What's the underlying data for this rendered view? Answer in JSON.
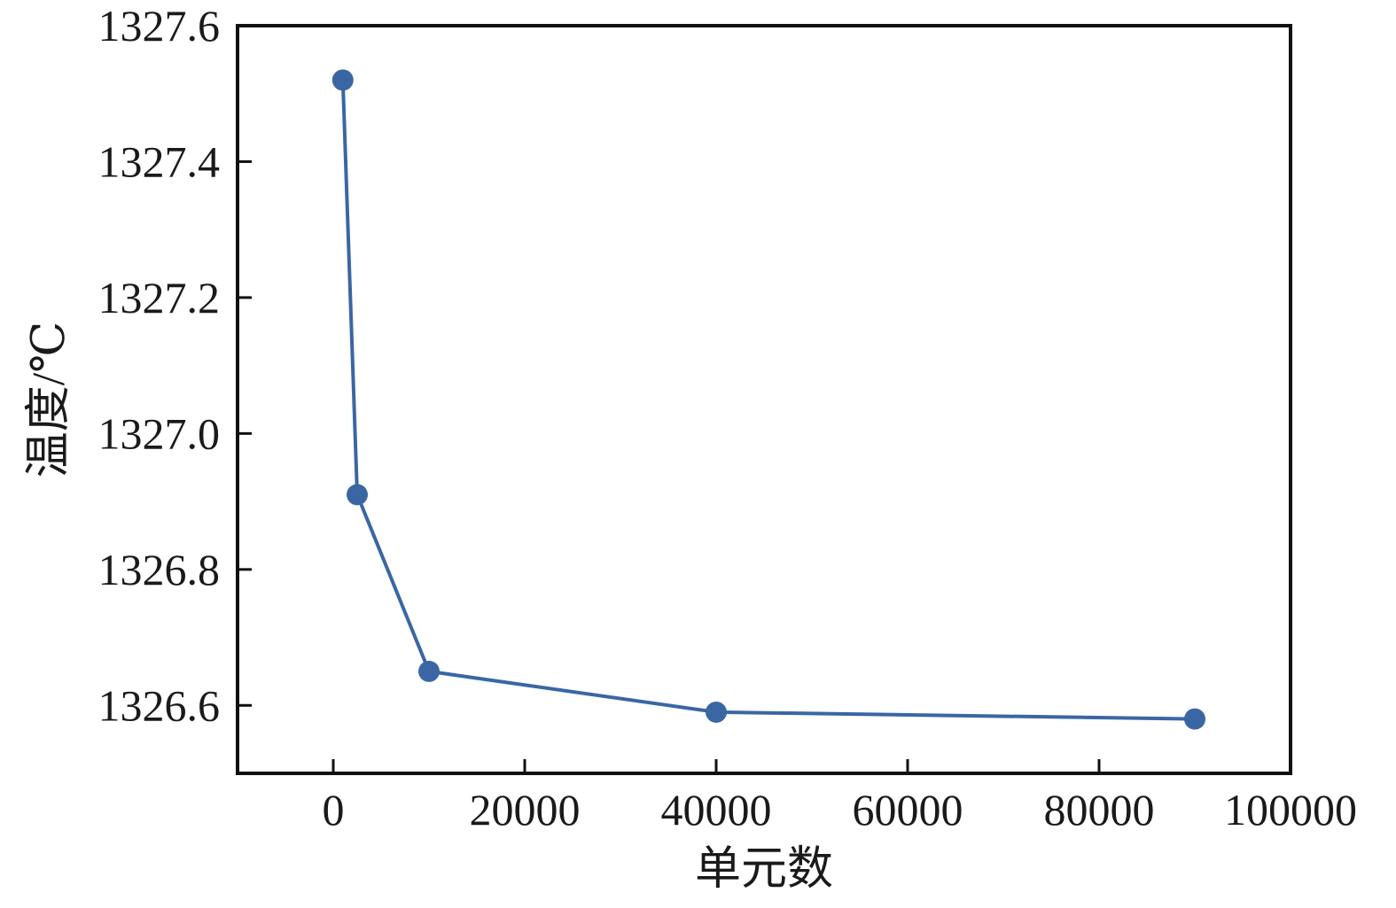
{
  "chart_data": {
    "type": "line",
    "title": "",
    "xlabel": "单元数",
    "ylabel": "温度/℃",
    "xlim": [
      -10000,
      100000
    ],
    "ylim": [
      1326.5,
      1327.6
    ],
    "x_ticks": [
      0,
      20000,
      40000,
      60000,
      80000,
      100000
    ],
    "x_tick_labels": [
      "0",
      "20000",
      "40000",
      "60000",
      "80000",
      "100000"
    ],
    "y_ticks": [
      1326.6,
      1326.8,
      1327.0,
      1327.2,
      1327.4,
      1327.6
    ],
    "y_tick_labels": [
      "1326.6",
      "1326.8",
      "1327.0",
      "1327.2",
      "1327.4",
      "1327.6"
    ],
    "grid": false,
    "series": [
      {
        "color": "#3a67a3",
        "marker": "circle",
        "x": [
          1000,
          2500,
          10000,
          40000,
          90000
        ],
        "y": [
          1327.52,
          1326.91,
          1326.65,
          1326.59,
          1326.58
        ]
      }
    ]
  }
}
